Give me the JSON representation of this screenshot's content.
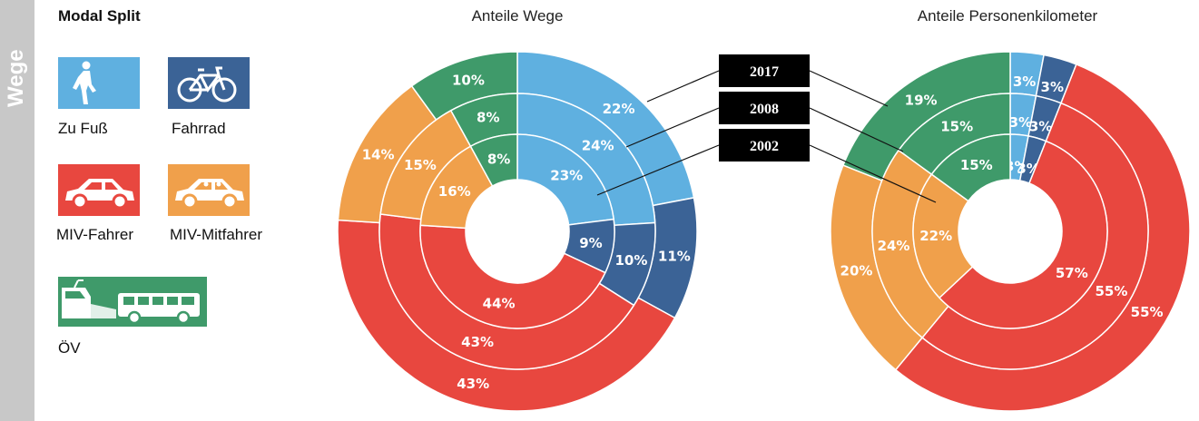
{
  "sidebar": {
    "label": "Wege"
  },
  "legend": {
    "title": "Modal Split",
    "items": [
      {
        "key": "fuss",
        "label": "Zu Fuß",
        "color": "#5fb0e0",
        "icon": "pedestrian-icon"
      },
      {
        "key": "rad",
        "label": "Fahrrad",
        "color": "#3b6396",
        "icon": "bicycle-icon"
      },
      {
        "key": "mivf",
        "label": "MIV-Fahrer",
        "color": "#e8473f",
        "icon": "car-icon"
      },
      {
        "key": "mivm",
        "label": "MIV-Mitfahrer",
        "color": "#f0a04b",
        "icon": "car-passengers-icon"
      },
      {
        "key": "oev",
        "label": "ÖV",
        "color": "#3f9a6a",
        "icon": "train-bus-icon"
      }
    ]
  },
  "years": [
    "2017",
    "2008",
    "2002"
  ],
  "chart_data": [
    {
      "type": "pie",
      "subtype": "nested-donut",
      "title": "Anteile Wege",
      "categories": [
        "Zu Fuß",
        "Fahrrad",
        "MIV-Fahrer",
        "MIV-Mitfahrer",
        "ÖV"
      ],
      "colors": [
        "#5fb0e0",
        "#3b6396",
        "#e8473f",
        "#f0a04b",
        "#3f9a6a"
      ],
      "rings": [
        {
          "name": "2017",
          "values": [
            22,
            11,
            43,
            14,
            10
          ]
        },
        {
          "name": "2008",
          "values": [
            24,
            10,
            43,
            15,
            8
          ]
        },
        {
          "name": "2002",
          "values": [
            23,
            9,
            44,
            16,
            8
          ]
        }
      ]
    },
    {
      "type": "pie",
      "subtype": "nested-donut",
      "title": "Anteile Personenkilometer",
      "categories": [
        "Zu Fuß",
        "Fahrrad",
        "MIV-Fahrer",
        "MIV-Mitfahrer",
        "ÖV"
      ],
      "colors": [
        "#5fb0e0",
        "#3b6396",
        "#e8473f",
        "#f0a04b",
        "#3f9a6a"
      ],
      "rings": [
        {
          "name": "2017",
          "values": [
            3,
            3,
            55,
            20,
            19
          ]
        },
        {
          "name": "2008",
          "values": [
            3,
            3,
            55,
            24,
            15
          ]
        },
        {
          "name": "2002",
          "values": [
            3,
            3,
            57,
            22,
            15
          ]
        }
      ]
    }
  ]
}
